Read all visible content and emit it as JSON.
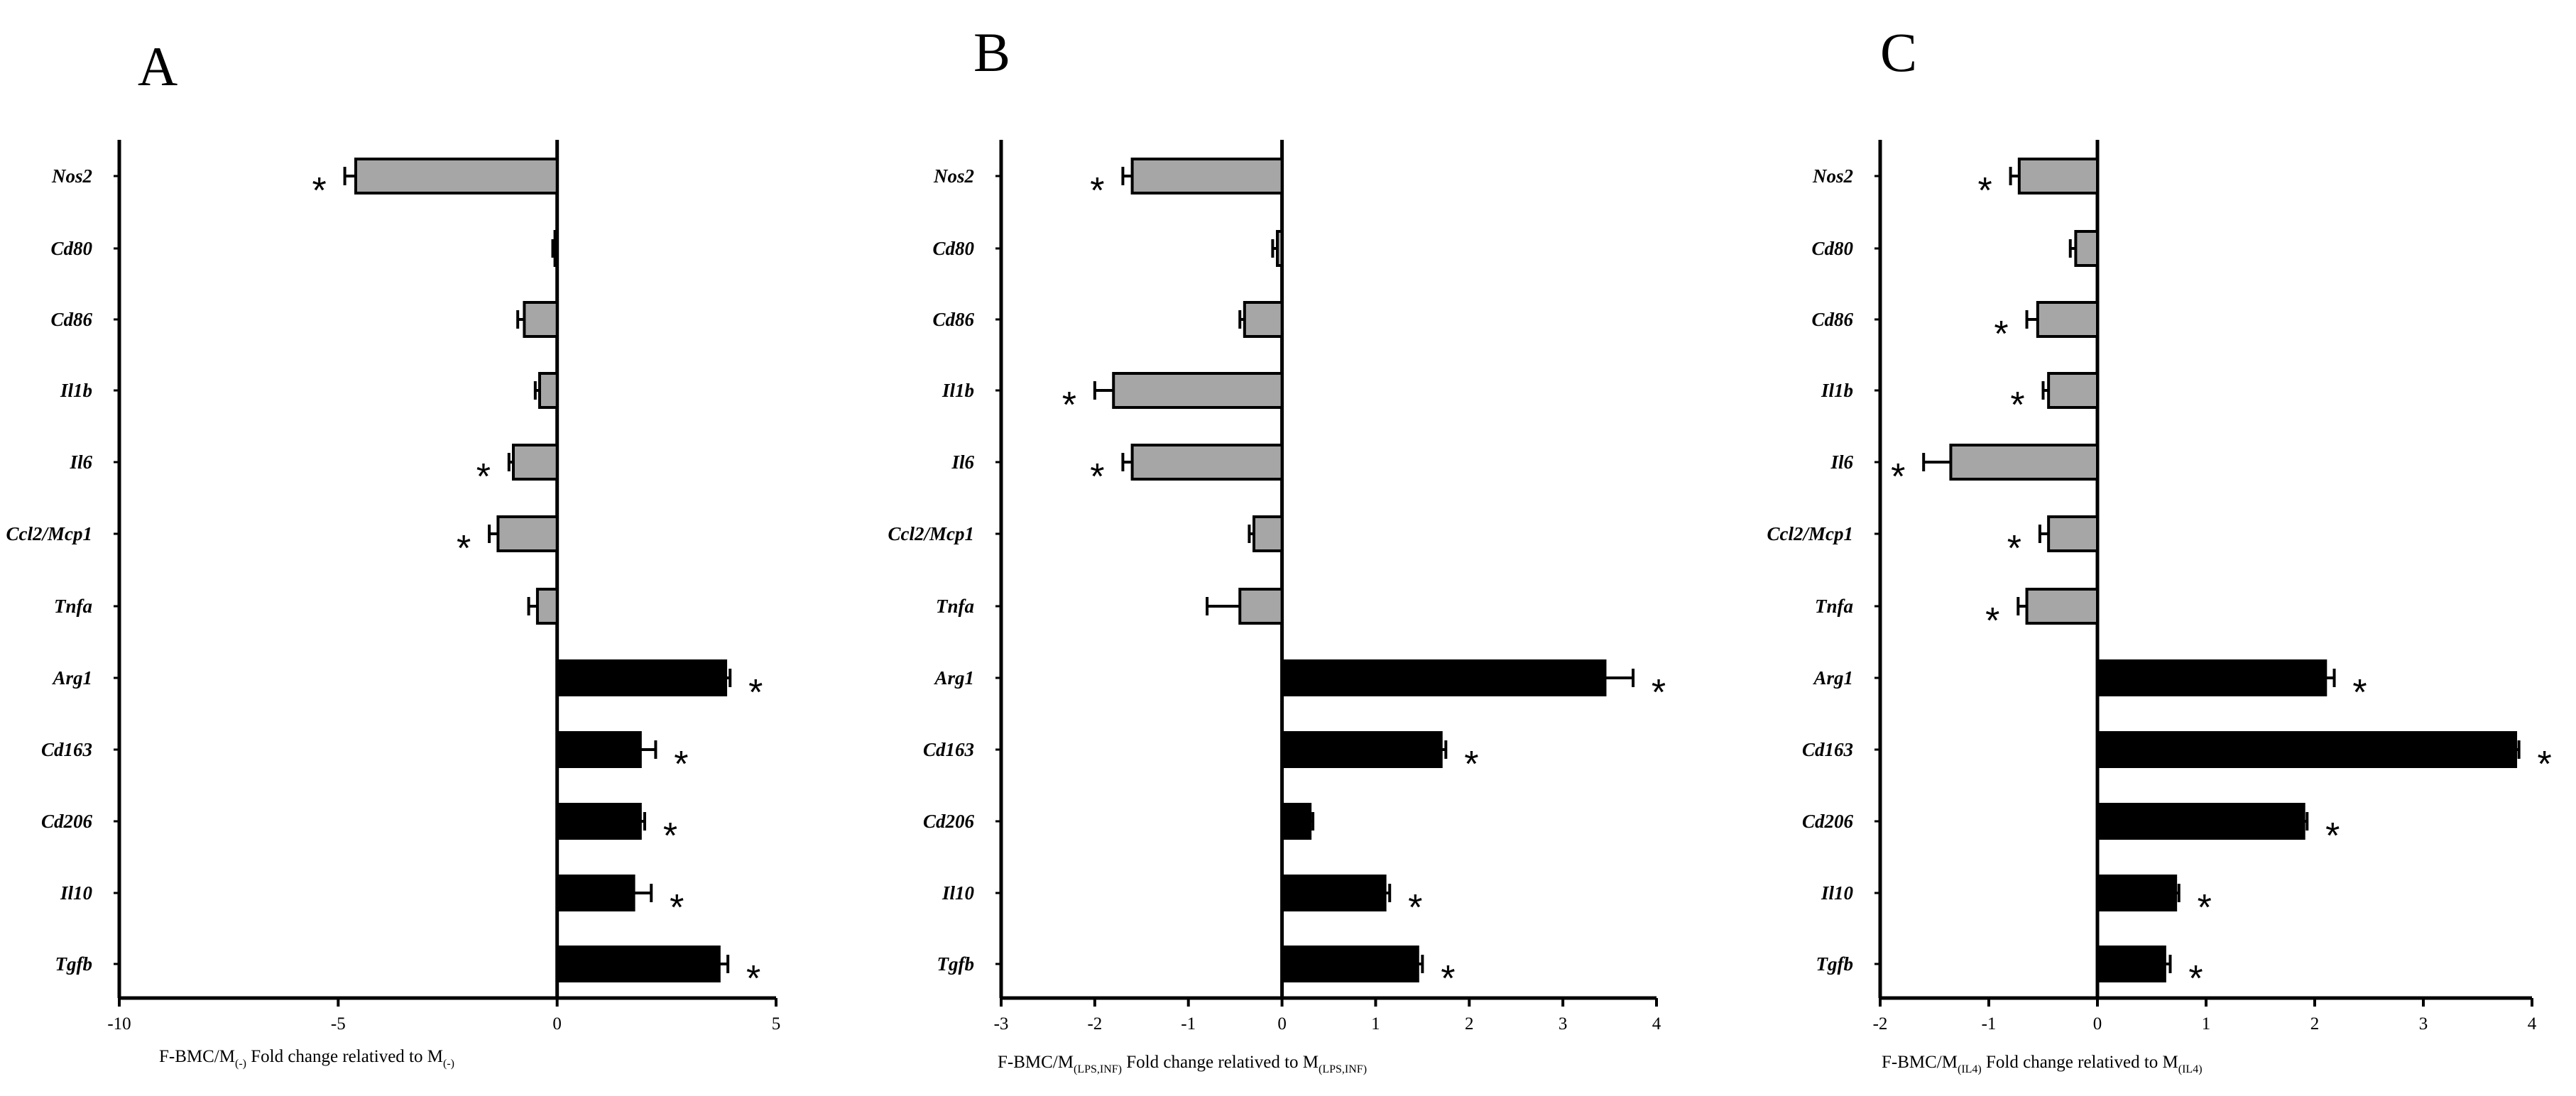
{
  "figure": {
    "panel_letters": [
      "A",
      "B",
      "C"
    ]
  },
  "chart_data": [
    {
      "type": "bar",
      "orientation": "horizontal",
      "panel": "A",
      "categories": [
        "Nos2",
        "Cd80",
        "Cd86",
        "Il1b",
        "Il6",
        "Ccl2/Mcp1",
        "Tnfa",
        "Arg1",
        "Cd163",
        "Cd206",
        "Il10",
        "Tgfb"
      ],
      "values": [
        -4.6,
        -0.05,
        -0.75,
        -0.4,
        -1.0,
        -1.35,
        -0.45,
        3.85,
        1.9,
        1.9,
        1.75,
        3.7
      ],
      "errors": [
        0.25,
        0.05,
        0.15,
        0.1,
        0.1,
        0.2,
        0.2,
        0.1,
        0.35,
        0.1,
        0.4,
        0.2
      ],
      "significant": [
        true,
        false,
        false,
        false,
        true,
        true,
        false,
        true,
        true,
        true,
        true,
        true
      ],
      "bar_colors": [
        "#a6a6a6",
        "#a6a6a6",
        "#a6a6a6",
        "#a6a6a6",
        "#a6a6a6",
        "#a6a6a6",
        "#a6a6a6",
        "#000000",
        "#000000",
        "#000000",
        "#000000",
        "#000000"
      ],
      "significance_marker": "*",
      "xlim": [
        -10,
        5
      ],
      "xticks": [
        -10,
        -5,
        0,
        5
      ],
      "xticklabels": [
        "-10",
        "-5",
        "0",
        "5"
      ],
      "xlabel": {
        "pre": "F-BMC/M",
        "sub1": "(-)",
        "mid": " Fold change relatived to M",
        "sub2": "(-)"
      },
      "grid": false
    },
    {
      "type": "bar",
      "orientation": "horizontal",
      "panel": "B",
      "categories": [
        "Nos2",
        "Cd80",
        "Cd86",
        "Il1b",
        "Il6",
        "Ccl2/Mcp1",
        "Tnfa",
        "Arg1",
        "Cd163",
        "Cd206",
        "Il10",
        "Tgfb"
      ],
      "values": [
        -1.6,
        -0.05,
        -0.4,
        -1.8,
        -1.6,
        -0.3,
        -0.45,
        3.45,
        1.7,
        0.3,
        1.1,
        1.45
      ],
      "errors": [
        0.1,
        0.05,
        0.05,
        0.2,
        0.1,
        0.05,
        0.35,
        0.3,
        0.05,
        0.03,
        0.05,
        0.05
      ],
      "significant": [
        true,
        false,
        false,
        true,
        true,
        false,
        false,
        true,
        true,
        false,
        true,
        true
      ],
      "bar_colors": [
        "#a6a6a6",
        "#a6a6a6",
        "#a6a6a6",
        "#a6a6a6",
        "#a6a6a6",
        "#a6a6a6",
        "#a6a6a6",
        "#000000",
        "#000000",
        "#000000",
        "#000000",
        "#000000"
      ],
      "significance_marker": "*",
      "xlim": [
        -3,
        4
      ],
      "xticks": [
        -3,
        -2,
        -1,
        0,
        1,
        2,
        3,
        4
      ],
      "xticklabels": [
        "-3",
        "-2",
        "-1",
        "0",
        "1",
        "2",
        "3",
        "4"
      ],
      "xlabel": {
        "pre": "F-BMC/M",
        "sub1": "(LPS,INF)",
        "mid": " Fold change relatived to M",
        "sub2": "(LPS,INF)"
      },
      "grid": false
    },
    {
      "type": "bar",
      "orientation": "horizontal",
      "panel": "C",
      "categories": [
        "Nos2",
        "Cd80",
        "Cd86",
        "Il1b",
        "Il6",
        "Ccl2/Mcp1",
        "Tnfa",
        "Arg1",
        "Cd163",
        "Cd206",
        "Il10",
        "Tgfb"
      ],
      "values": [
        -0.72,
        -0.2,
        -0.55,
        -0.45,
        -1.35,
        -0.45,
        -0.65,
        2.1,
        3.85,
        1.9,
        0.72,
        0.62
      ],
      "errors": [
        0.08,
        0.05,
        0.1,
        0.05,
        0.25,
        0.08,
        0.08,
        0.08,
        0.03,
        0.03,
        0.03,
        0.05
      ],
      "significant": [
        true,
        false,
        true,
        true,
        true,
        true,
        true,
        true,
        true,
        true,
        true,
        true
      ],
      "bar_colors": [
        "#a6a6a6",
        "#a6a6a6",
        "#a6a6a6",
        "#a6a6a6",
        "#a6a6a6",
        "#a6a6a6",
        "#a6a6a6",
        "#000000",
        "#000000",
        "#000000",
        "#000000",
        "#000000"
      ],
      "significance_marker": "*",
      "xlim": [
        -2,
        4
      ],
      "xticks": [
        -2,
        -1,
        0,
        1,
        2,
        3,
        4
      ],
      "xticklabels": [
        "-2",
        "-1",
        "0",
        "1",
        "2",
        "3",
        "4"
      ],
      "xlabel": {
        "pre": "F-BMC/M",
        "sub1": "(IL4)",
        "mid": " Fold change relatived to M",
        "sub2": "(IL4)"
      },
      "grid": false
    }
  ]
}
